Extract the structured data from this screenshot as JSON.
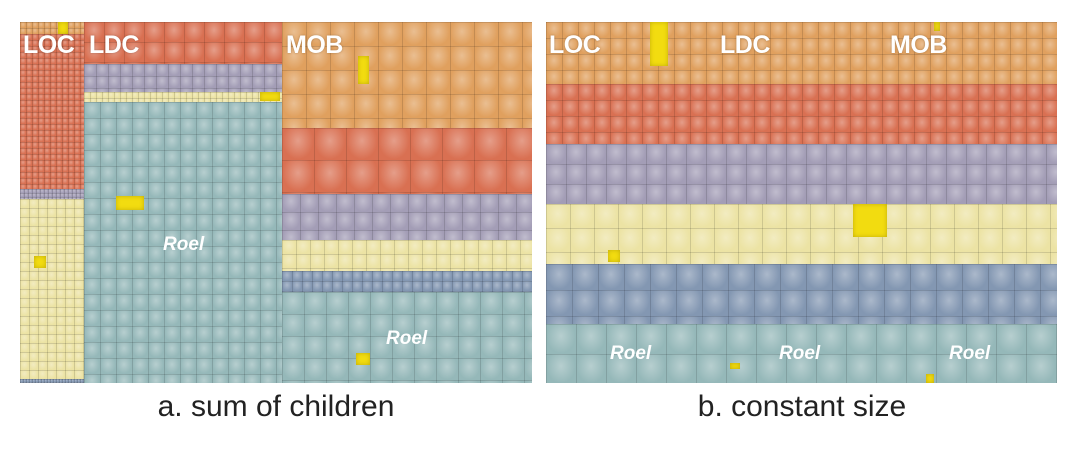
{
  "colors": {
    "orange": "#e0a05e",
    "red": "#d97052",
    "purple": "#a39db6",
    "cream": "#ece3a4",
    "blue": "#8397b2",
    "teal": "#95b8b9",
    "highlight": "#f2dc10"
  },
  "panel_a": {
    "labels": {
      "loc": "LOC",
      "ldc": "LDC",
      "mob": "MOB"
    },
    "roel_1": "Roel",
    "roel_2": "Roel",
    "caption": "a. sum of children"
  },
  "panel_b": {
    "labels": {
      "loc": "LOC",
      "ldc": "LDC",
      "mob": "MOB"
    },
    "roel_1": "Roel",
    "roel_2": "Roel",
    "roel_3": "Roel",
    "caption": "b. constant size"
  }
}
